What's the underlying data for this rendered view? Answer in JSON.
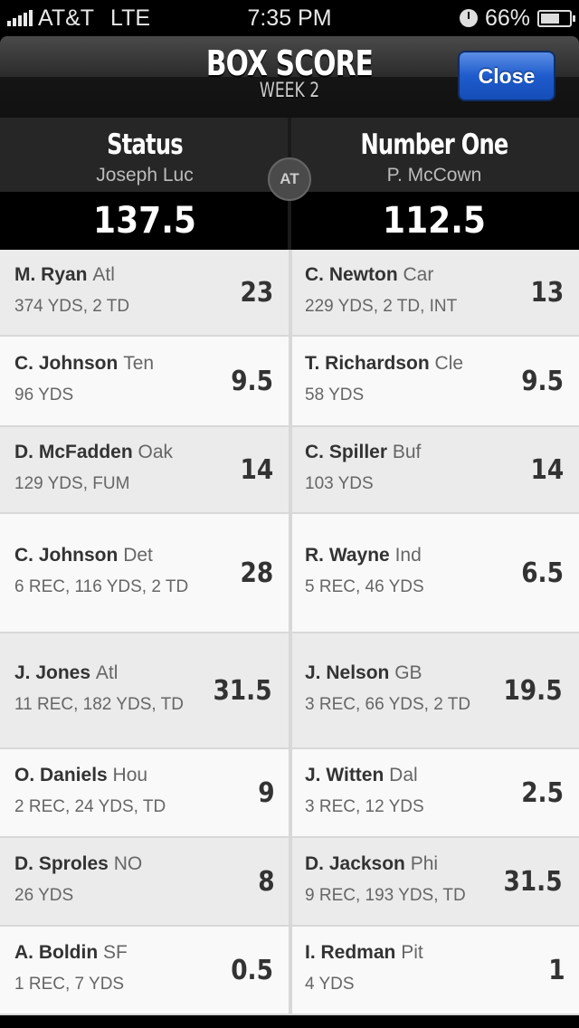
{
  "status_bar": {
    "carrier": "AT&T",
    "network": "LTE",
    "time": "7:35 PM",
    "battery": "66%",
    "battery_level": 0.66
  },
  "header": {
    "title": "BOX SCORE",
    "subtitle": "WEEK 2",
    "close_label": "Close",
    "close_color": "#1e5bcc"
  },
  "matchup": {
    "home": {
      "team": "Status",
      "owner": "Joseph Luc",
      "score": "137.5"
    },
    "away": {
      "team": "Number One",
      "owner": "P. McCown",
      "score": "112.5"
    },
    "vs_label": "AT"
  },
  "rows": [
    {
      "left": {
        "name": "M. Ryan",
        "team": "Atl",
        "stats": "374 YDS, 2 TD",
        "points": "23"
      },
      "right": {
        "name": "C. Newton",
        "team": "Car",
        "stats": "229 YDS, 2 TD, INT",
        "points": "13"
      }
    },
    {
      "left": {
        "name": "C. Johnson",
        "team": "Ten",
        "stats": "96 YDS",
        "points": "9.5"
      },
      "right": {
        "name": "T. Richardson",
        "team": "Cle",
        "stats": "58 YDS",
        "points": "9.5"
      }
    },
    {
      "left": {
        "name": "D. McFadden",
        "team": "Oak",
        "stats": "129 YDS, FUM",
        "points": "14"
      },
      "right": {
        "name": "C. Spiller",
        "team": "Buf",
        "stats": "103 YDS",
        "points": "14"
      }
    },
    {
      "left": {
        "name": "C. Johnson",
        "team": "Det",
        "stats": "6 REC, 116 YDS, 2 TD",
        "points": "28"
      },
      "right": {
        "name": "R. Wayne",
        "team": "Ind",
        "stats": "5 REC, 46 YDS",
        "points": "6.5"
      }
    },
    {
      "left": {
        "name": "J. Jones",
        "team": "Atl",
        "stats": "11 REC, 182 YDS, TD",
        "points": "31.5"
      },
      "right": {
        "name": "J. Nelson",
        "team": "GB",
        "stats": "3 REC, 66 YDS, 2 TD",
        "points": "19.5"
      }
    },
    {
      "left": {
        "name": "O. Daniels",
        "team": "Hou",
        "stats": "2 REC, 24 YDS, TD",
        "points": "9"
      },
      "right": {
        "name": "J. Witten",
        "team": "Dal",
        "stats": "3 REC, 12 YDS",
        "points": "2.5"
      }
    },
    {
      "left": {
        "name": "D. Sproles",
        "team": "NO",
        "stats": "26 YDS",
        "points": "8"
      },
      "right": {
        "name": "D. Jackson",
        "team": "Phi",
        "stats": "9 REC, 193 YDS, TD",
        "points": "31.5"
      }
    },
    {
      "left": {
        "name": "A. Boldin",
        "team": "SF",
        "stats": "1 REC, 7 YDS",
        "points": "0.5"
      },
      "right": {
        "name": "I. Redman",
        "team": "Pit",
        "stats": "4 YDS",
        "points": "1"
      }
    }
  ]
}
